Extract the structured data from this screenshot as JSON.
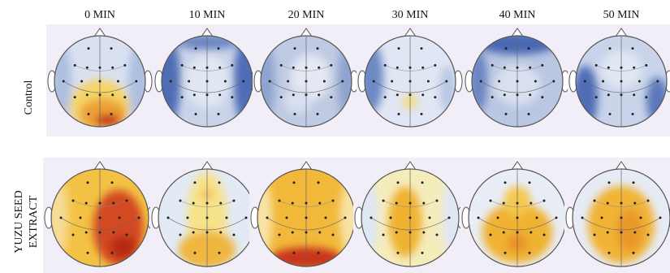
{
  "columns": [
    "0 MIN",
    "10 MIN",
    "20 MIN",
    "30 MIN",
    "40 MIN",
    "50 MIN"
  ],
  "rows": [
    {
      "label_lines": [
        "Control"
      ]
    },
    {
      "label_lines": [
        "YUZU SEED",
        "EXTRACT"
      ]
    }
  ]
}
